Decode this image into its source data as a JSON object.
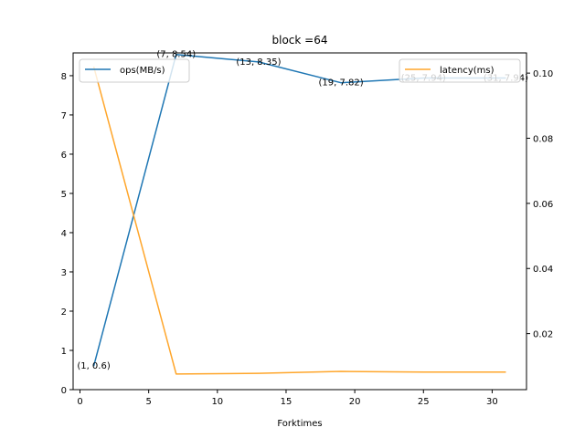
{
  "chart_data": {
    "type": "line",
    "title": "block =64",
    "xlabel": "Forktimes",
    "ylabel": "",
    "y2label": "",
    "x": [
      1,
      7,
      13,
      19,
      25,
      31
    ],
    "xlim": [
      -0.5,
      32.5
    ],
    "ylim": [
      0,
      8.58
    ],
    "y2lim": [
      0.0028,
      0.1062
    ],
    "xticks": [
      0,
      5,
      10,
      15,
      20,
      25,
      30
    ],
    "yticks": [
      0,
      1,
      2,
      3,
      4,
      5,
      6,
      7,
      8
    ],
    "y2ticks": [
      0.02,
      0.04,
      0.06,
      0.08,
      0.1
    ],
    "y2tick_labels": [
      "0.02",
      "0.04",
      "0.06",
      "0.08",
      "0.10"
    ],
    "series": [
      {
        "name": "ops(MB/s)",
        "axis": "left",
        "color": "#1f77b4",
        "values": [
          0.6,
          8.54,
          8.35,
          7.82,
          7.94,
          7.94
        ]
      },
      {
        "name": "latency(ms)",
        "axis": "right",
        "color": "#ffa62b",
        "values": [
          0.102,
          0.0076,
          0.0078,
          0.0084,
          0.0082,
          0.0082
        ]
      }
    ],
    "annotations": [
      {
        "x": 1,
        "y": 0.6,
        "text": "(1, 0.6)"
      },
      {
        "x": 7,
        "y": 8.54,
        "text": "(7, 8.54)"
      },
      {
        "x": 13,
        "y": 8.35,
        "text": "(13, 8.35)"
      },
      {
        "x": 19,
        "y": 7.82,
        "text": "(19, 7.82)"
      },
      {
        "x": 25,
        "y": 7.94,
        "text": "(25, 7.94)"
      },
      {
        "x": 31,
        "y": 7.94,
        "text": "(31, 7.94)"
      }
    ],
    "legend_left": "upper-left",
    "legend_right": "upper-right",
    "grid": false
  }
}
